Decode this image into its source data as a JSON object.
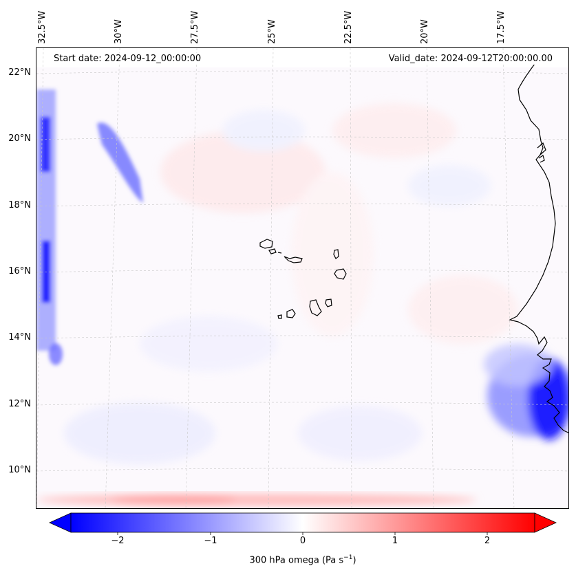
{
  "map": {
    "header": {
      "start_date": "Start date: 2024-09-12_00:00:00",
      "valid_date": "Valid_date: 2024-09-12T20:00:00.00"
    },
    "lon_labels": [
      "32.5°W",
      "30°W",
      "27.5°W",
      "25°W",
      "22.5°W",
      "20°W",
      "17.5°W"
    ],
    "lat_labels": [
      "22°N",
      "20°N",
      "18°N",
      "16°N",
      "14°N",
      "12°N",
      "10°N"
    ],
    "colorbar": {
      "label": "300 hPa omega (Pa s",
      "label_sup": "−1",
      "label_end": ")",
      "ticks": [
        "−2",
        "−1",
        "0",
        "1",
        "2"
      ],
      "min": -2.5,
      "max": 2.5,
      "low_color": "#0000ff",
      "high_color": "#ff0000"
    },
    "colors": {
      "gridline": "#c8c8c8",
      "coast": "#000000"
    }
  }
}
